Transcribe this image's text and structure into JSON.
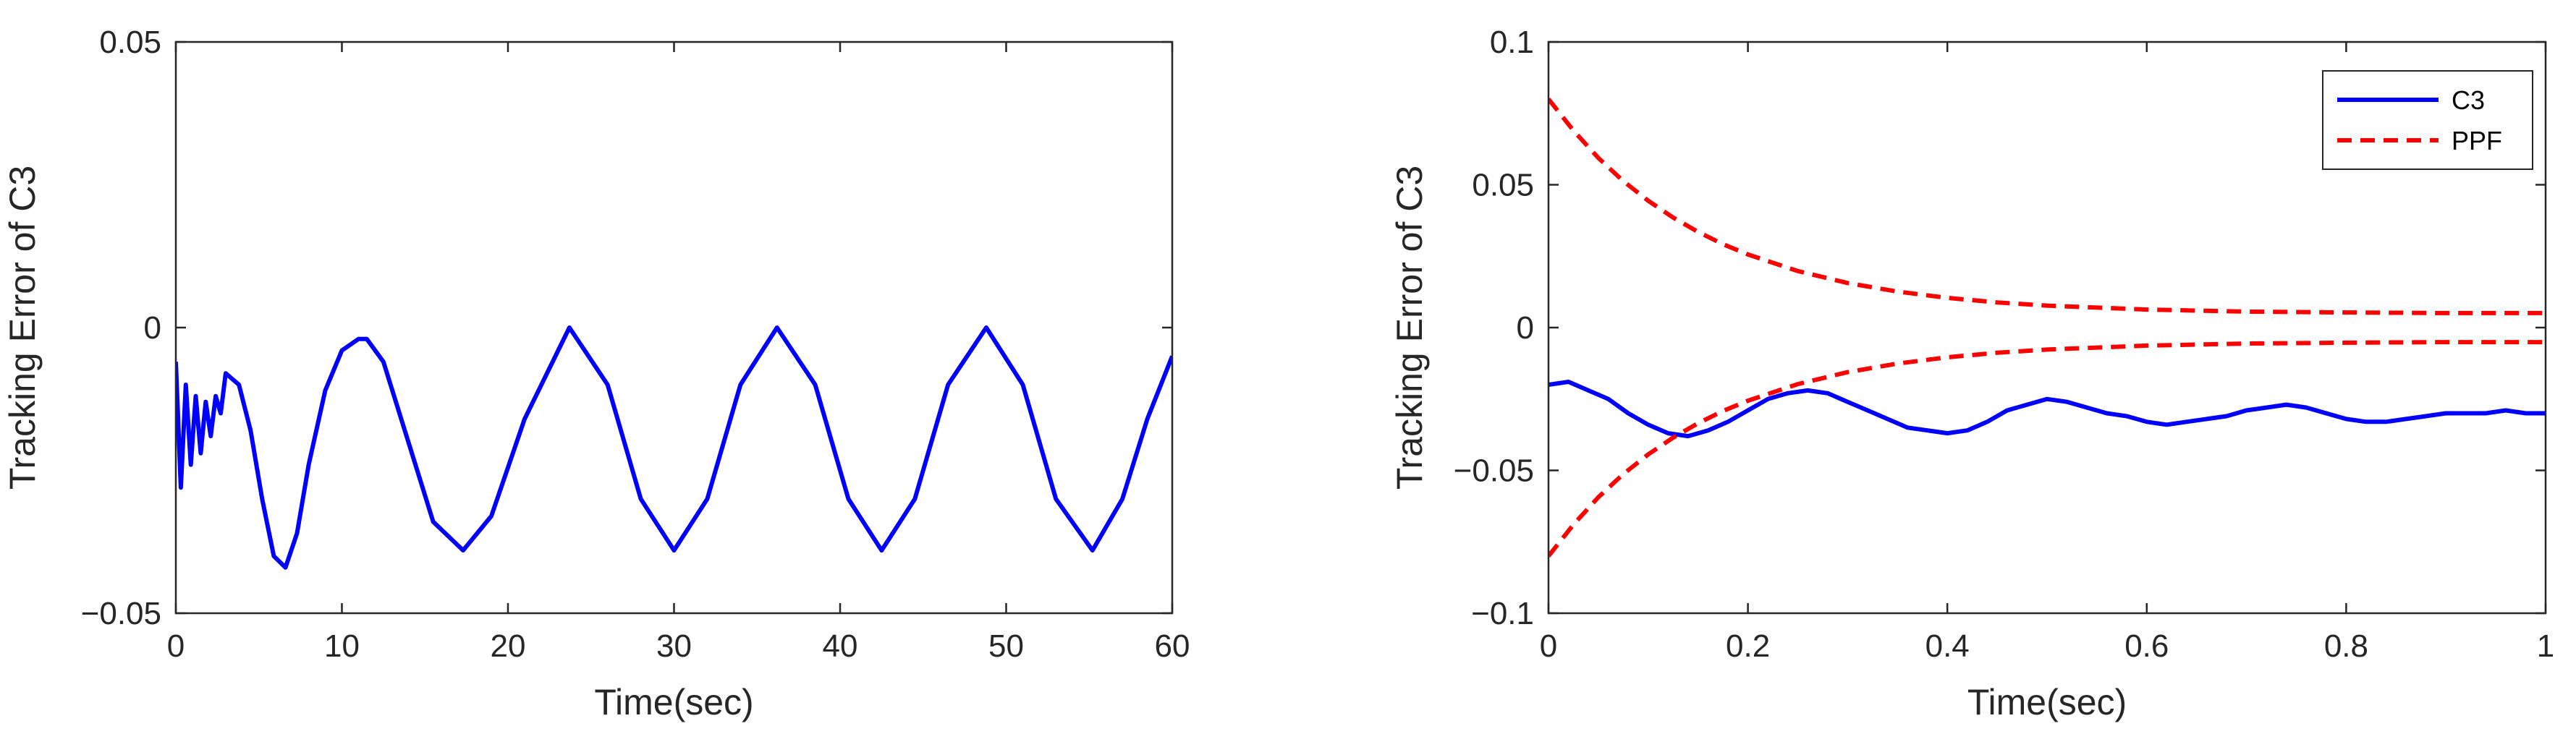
{
  "colors": {
    "c3": "#0000ff",
    "ppf": "#ff0000",
    "axis": "#262626"
  },
  "chart_data": [
    {
      "type": "line",
      "title": "",
      "xlabel": "Time(sec)",
      "ylabel": "Tracking Error of C3",
      "xlim": [
        0,
        60
      ],
      "ylim": [
        -0.05,
        0.05
      ],
      "xticks": [
        0,
        10,
        20,
        30,
        40,
        50,
        60
      ],
      "xtick_labels": [
        "0",
        "10",
        "20",
        "30",
        "40",
        "50",
        "60"
      ],
      "yticks": [
        -0.05,
        0,
        0.05
      ],
      "ytick_labels": [
        "−0.05",
        "0",
        "0.05"
      ],
      "grid": false,
      "series": [
        {
          "color": "#0000ff",
          "style": "solid",
          "x": [
            0,
            0.3,
            0.6,
            0.9,
            1.2,
            1.5,
            1.8,
            2.1,
            2.4,
            2.7,
            3.0,
            3.4,
            3.8,
            4.5,
            5.2,
            5.9,
            6.6,
            7.3,
            8.0,
            9.0,
            10.0,
            11.0,
            11.5,
            12.5,
            14.0,
            15.5,
            17.3,
            19.0,
            21.0,
            23.7,
            26.0,
            28.0,
            30.0,
            32.0,
            34.0,
            36.2,
            38.5,
            40.5,
            42.5,
            44.5,
            46.5,
            48.8,
            51.0,
            53.0,
            55.2,
            57.0,
            58.5,
            60.0
          ],
          "y": [
            -0.006,
            -0.028,
            -0.01,
            -0.024,
            -0.012,
            -0.022,
            -0.013,
            -0.019,
            -0.012,
            -0.015,
            -0.008,
            -0.009,
            -0.01,
            -0.018,
            -0.03,
            -0.04,
            -0.042,
            -0.036,
            -0.024,
            -0.011,
            -0.004,
            -0.002,
            -0.002,
            -0.006,
            -0.02,
            -0.034,
            -0.039,
            -0.033,
            -0.016,
            0.0,
            -0.01,
            -0.03,
            -0.039,
            -0.03,
            -0.01,
            0.0,
            -0.01,
            -0.03,
            -0.039,
            -0.03,
            -0.01,
            0.0,
            -0.01,
            -0.03,
            -0.039,
            -0.03,
            -0.016,
            -0.005
          ]
        }
      ]
    },
    {
      "type": "line",
      "title": "",
      "xlabel": "Time(sec)",
      "ylabel": "Tracking Error of C3",
      "xlim": [
        0,
        1
      ],
      "ylim": [
        -0.1,
        0.1
      ],
      "xticks": [
        0,
        0.2,
        0.4,
        0.6,
        0.8,
        1
      ],
      "xtick_labels": [
        "0",
        "0.2",
        "0.4",
        "0.6",
        "0.8",
        "1"
      ],
      "yticks": [
        -0.1,
        -0.05,
        0,
        0.05,
        0.1
      ],
      "ytick_labels": [
        "−0.1",
        "−0.05",
        "0",
        "0.05",
        "0.1"
      ],
      "grid": false,
      "legend": {
        "position": "top-right"
      },
      "series": [
        {
          "name": "C3",
          "color": "#0000ff",
          "style": "solid",
          "x": [
            0,
            0.02,
            0.04,
            0.06,
            0.08,
            0.1,
            0.12,
            0.14,
            0.16,
            0.18,
            0.2,
            0.22,
            0.24,
            0.26,
            0.28,
            0.3,
            0.32,
            0.34,
            0.36,
            0.38,
            0.4,
            0.42,
            0.44,
            0.46,
            0.48,
            0.5,
            0.52,
            0.54,
            0.56,
            0.58,
            0.6,
            0.62,
            0.64,
            0.66,
            0.68,
            0.7,
            0.72,
            0.74,
            0.76,
            0.78,
            0.8,
            0.82,
            0.84,
            0.86,
            0.88,
            0.9,
            0.92,
            0.94,
            0.96,
            0.98,
            1.0
          ],
          "y": [
            -0.02,
            -0.019,
            -0.022,
            -0.025,
            -0.03,
            -0.034,
            -0.037,
            -0.038,
            -0.036,
            -0.033,
            -0.029,
            -0.025,
            -0.023,
            -0.022,
            -0.023,
            -0.026,
            -0.029,
            -0.032,
            -0.035,
            -0.036,
            -0.037,
            -0.036,
            -0.033,
            -0.029,
            -0.027,
            -0.025,
            -0.026,
            -0.028,
            -0.03,
            -0.031,
            -0.033,
            -0.034,
            -0.033,
            -0.032,
            -0.031,
            -0.029,
            -0.028,
            -0.027,
            -0.028,
            -0.03,
            -0.032,
            -0.033,
            -0.033,
            -0.032,
            -0.031,
            -0.03,
            -0.03,
            -0.03,
            -0.029,
            -0.03,
            -0.03
          ]
        },
        {
          "name": "PPF",
          "color": "#ff0000",
          "style": "dashed",
          "x": [
            0,
            0.025,
            0.05,
            0.075,
            0.1,
            0.125,
            0.15,
            0.175,
            0.2,
            0.25,
            0.3,
            0.35,
            0.4,
            0.45,
            0.5,
            0.6,
            0.7,
            0.8,
            0.9,
            1.0
          ],
          "y": [
            0.08,
            0.069,
            0.0594,
            0.0513,
            0.0444,
            0.0385,
            0.0335,
            0.0292,
            0.0256,
            0.0198,
            0.0156,
            0.0126,
            0.0104,
            0.0088,
            0.0077,
            0.0063,
            0.0056,
            0.0053,
            0.0051,
            0.0051
          ]
        },
        {
          "name": "",
          "color": "#ff0000",
          "style": "dashed",
          "x": [
            0,
            0.025,
            0.05,
            0.075,
            0.1,
            0.125,
            0.15,
            0.175,
            0.2,
            0.25,
            0.3,
            0.35,
            0.4,
            0.45,
            0.5,
            0.6,
            0.7,
            0.8,
            0.9,
            1.0
          ],
          "y": [
            -0.08,
            -0.069,
            -0.0594,
            -0.0513,
            -0.0444,
            -0.0385,
            -0.0335,
            -0.0292,
            -0.0256,
            -0.0198,
            -0.0156,
            -0.0126,
            -0.0104,
            -0.0088,
            -0.0077,
            -0.0063,
            -0.0056,
            -0.0053,
            -0.0051,
            -0.0051
          ]
        }
      ]
    }
  ]
}
